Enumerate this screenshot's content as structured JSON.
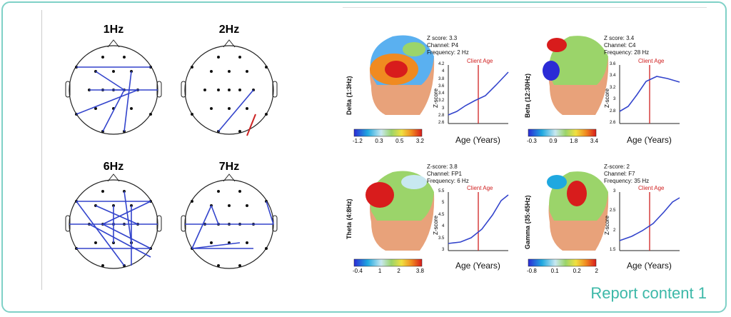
{
  "footer": {
    "label": "Report content 1"
  },
  "connectivity": [
    {
      "freq": "1Hz"
    },
    {
      "freq": "2Hz"
    },
    {
      "freq": "6Hz"
    },
    {
      "freq": "7Hz"
    }
  ],
  "brain_panels": [
    {
      "band": "Delta (1:3Hz)",
      "z_line": "Z score: 3.3",
      "channel": "Channel: P4",
      "frequency": "Frequency: 2 Hz",
      "chart_title": "Client Age",
      "ylabel": "Z-score",
      "xlabel": "Age (Years)",
      "colorbar": [
        "-1.2",
        "0.3",
        "0.5",
        "3.2"
      ],
      "yticks": [
        "4.2",
        "4",
        "3.8",
        "3.6",
        "3.4",
        "3.2",
        "3",
        "2.8",
        "2.6"
      ]
    },
    {
      "band": "Beta (12:30Hz)",
      "z_line": "Z score: 3.4",
      "channel": "Channel: C4",
      "frequency": "Frequency: 28 Hz",
      "chart_title": "Client Age",
      "ylabel": "Z-score",
      "xlabel": "Age (Years)",
      "colorbar": [
        "-0.3",
        "0.9",
        "1.8",
        "3.4"
      ],
      "yticks": [
        "3.6",
        "3.4",
        "3.2",
        "3",
        "2.8",
        "2.6"
      ]
    },
    {
      "band": "Theta (4:8Hz)",
      "z_line": "Z-score: 3.8",
      "channel": "Channel: FP1",
      "frequency": "Frequency: 6 Hz",
      "chart_title": "Client Age",
      "ylabel": "Z-score",
      "xlabel": "Age (Years)",
      "colorbar": [
        "-0.4",
        "1",
        "2",
        "3.8"
      ],
      "yticks": [
        "5.5",
        "5",
        "4.5",
        "4",
        "3.5",
        "3"
      ]
    },
    {
      "band": "Gamma (35:45Hz)",
      "z_line": "Z-score: 2",
      "channel": "Channel: F7",
      "frequency": "Frequency: 35 Hz",
      "chart_title": "Client Age",
      "ylabel": "Z-score",
      "xlabel": "Age (Years)",
      "colorbar": [
        "-0.8",
        "0.1",
        "0.2",
        "2"
      ],
      "yticks": [
        "3",
        "2.5",
        "2",
        "1.5"
      ]
    }
  ]
}
